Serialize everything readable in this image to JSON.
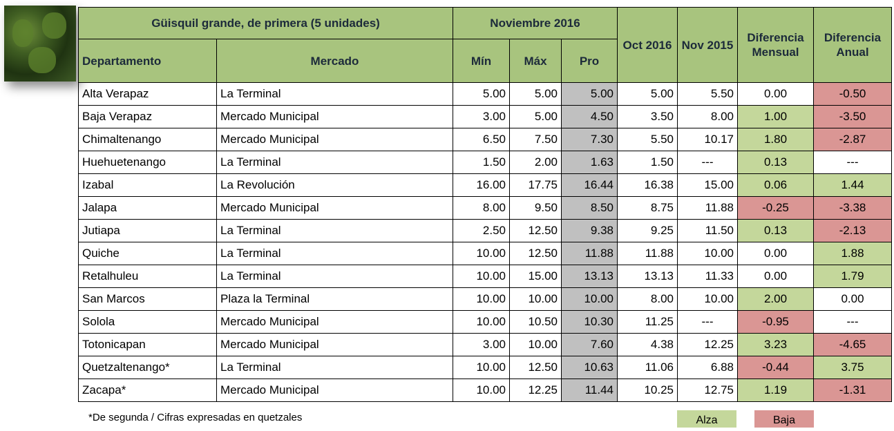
{
  "header": {
    "title": "Güisquil grande, de primera (5 unidades)",
    "month": "Noviembre 2016",
    "columns": [
      "Departamento",
      "Mercado",
      "Mín",
      "Máx",
      "Pro",
      "Oct 2016",
      "Nov 2015",
      "Diferencia Mensual",
      "Diferencia Anual"
    ]
  },
  "table": {
    "rows": [
      [
        "Alta Verapaz",
        "La Terminal",
        "5.00",
        "5.00",
        "5.00",
        "5.00",
        "5.50",
        "0.00",
        "-0.50"
      ],
      [
        "Baja Verapaz",
        "Mercado Municipal",
        "3.00",
        "5.00",
        "4.50",
        "3.50",
        "8.00",
        "1.00",
        "-3.50"
      ],
      [
        "Chimaltenango",
        "Mercado Municipal",
        "6.50",
        "7.50",
        "7.30",
        "5.50",
        "10.17",
        "1.80",
        "-2.87"
      ],
      [
        "Huehuetenango",
        "La Terminal",
        "1.50",
        "2.00",
        "1.63",
        "1.50",
        "---",
        "0.13",
        "---"
      ],
      [
        "Izabal",
        "La Revolución",
        "16.00",
        "17.75",
        "16.44",
        "16.38",
        "15.00",
        "0.06",
        "1.44"
      ],
      [
        "Jalapa",
        "Mercado Municipal",
        "8.00",
        "9.50",
        "8.50",
        "8.75",
        "11.88",
        "-0.25",
        "-3.38"
      ],
      [
        "Jutiapa",
        "La Terminal",
        "2.50",
        "12.50",
        "9.38",
        "9.25",
        "11.50",
        "0.13",
        "-2.13"
      ],
      [
        "Quiche",
        "La Terminal",
        "10.00",
        "12.50",
        "11.88",
        "11.88",
        "10.00",
        "0.00",
        "1.88"
      ],
      [
        "Retalhuleu",
        "La Terminal",
        "10.00",
        "15.00",
        "13.13",
        "13.13",
        "11.33",
        "0.00",
        "1.79"
      ],
      [
        "San Marcos",
        "Plaza la Terminal",
        "10.00",
        "10.00",
        "10.00",
        "8.00",
        "10.00",
        "2.00",
        "0.00"
      ],
      [
        "Solola",
        "Mercado Municipal",
        "10.00",
        "10.50",
        "10.30",
        "11.25",
        "---",
        "-0.95",
        "---"
      ],
      [
        "Totonicapan",
        "Mercado Municipal",
        "3.00",
        "10.00",
        "7.60",
        "4.38",
        "12.25",
        "3.23",
        "-4.65"
      ],
      [
        "Quetzaltenango*",
        "La Terminal",
        "10.00",
        "12.50",
        "10.63",
        "11.06",
        "6.88",
        "-0.44",
        "3.75"
      ],
      [
        "Zacapa*",
        "Mercado Municipal",
        "10.00",
        "12.25",
        "11.44",
        "10.25",
        "12.75",
        "1.19",
        "-1.31"
      ]
    ]
  },
  "footer": {
    "note": "*De segunda / Cifras expresadas en quetzales",
    "legend": [
      "Alza",
      "Baja"
    ]
  }
}
